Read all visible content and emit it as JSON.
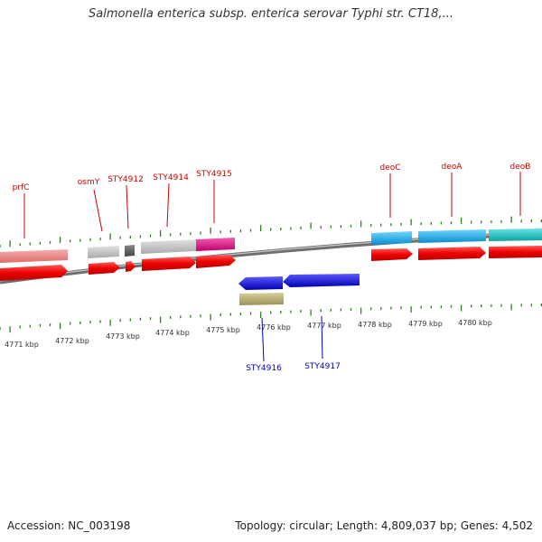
{
  "title": "Salmonella enterica subsp. enterica serovar Typhi str. CT18,...",
  "accession": "Accession: NC_003198",
  "topology": "Topology: circular; Length: 4,809,037 bp; Genes: 4,502",
  "colors": {
    "backbone": "#7a7a7a",
    "tick": "#2e7d1e",
    "cds": "#ee1111",
    "plus_label": "#cc0000",
    "minus_label": "#0000cc",
    "minus_gene": "#1a1aee",
    "minus_feature": "#b7ad6e",
    "pink": "#f08a8a",
    "gray": "#bdbdbd",
    "darkgray": "#666666",
    "magenta": "#e61a8c",
    "cyan": "#22b0e6",
    "teal": "#20c4c4"
  },
  "kbp_ticks": [
    "4771 kbp",
    "4772 kbp",
    "4773 kbp",
    "4774 kbp",
    "4775 kbp",
    "4776 kbp",
    "4777 kbp",
    "4778 kbp",
    "4779 kbp",
    "4780 kbp"
  ],
  "plus_labels": [
    "prfC",
    "osmY",
    "STY4912",
    "STY4914",
    "STY4915",
    "deoC",
    "deoA",
    "deoB"
  ],
  "minus_labels": [
    "STY4916",
    "STY4917"
  ]
}
